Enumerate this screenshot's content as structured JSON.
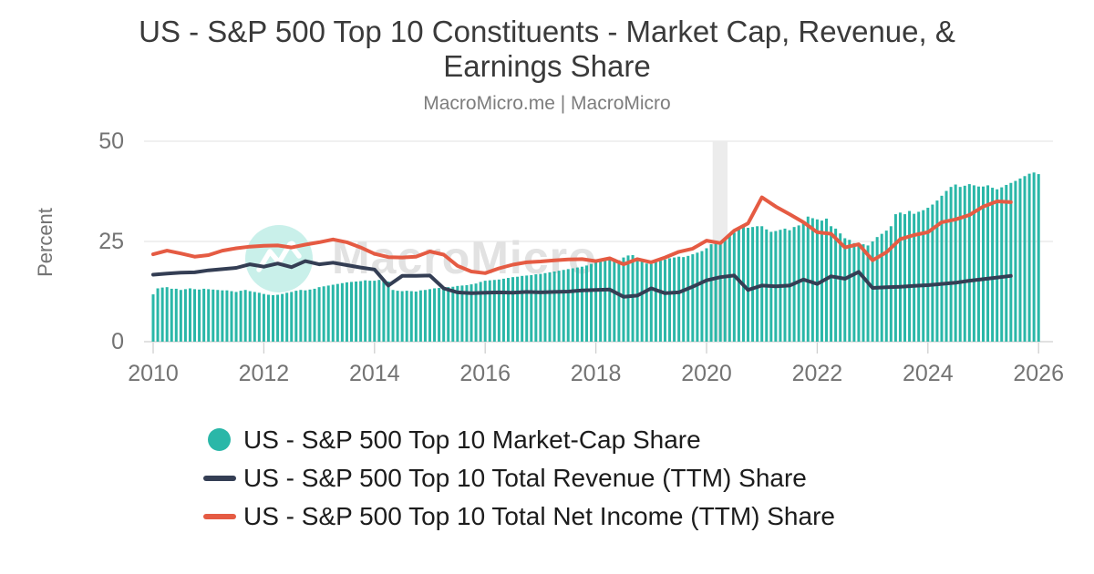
{
  "header": {
    "subtitle": "MacroMicro.me | MacroMicro"
  },
  "watermark": {
    "text": "MacroMicro"
  },
  "colors": {
    "background": "#ffffff",
    "grid": "#e8e8e8",
    "axis_line": "#cfcfcf",
    "tick_text": "#737373",
    "recession_band": "#ececec",
    "watermark_text": "#e2e2e2",
    "watermark_circle": "#bcece5"
  },
  "chart_data": {
    "type": "bar",
    "title": "US - S&P 500 Top 10 Constituents - Market Cap, Revenue, & Earnings Share",
    "subtitle": "MacroMicro.me | MacroMicro",
    "xlabel": "",
    "ylabel": "Percent",
    "ylim": [
      0,
      50
    ],
    "y_ticks": [
      0,
      25,
      50
    ],
    "x_ticks": [
      2010,
      2012,
      2014,
      2016,
      2018,
      2020,
      2022,
      2024,
      2026
    ],
    "grid": true,
    "legend_position": "bottom",
    "recession_band": {
      "from": 2020.11,
      "to": 2020.38
    },
    "bars": {
      "name": "US - S&P 500 Top 10 Market-Cap Share",
      "color": "#2ab7a8",
      "x_start": 2010.0,
      "x_step_months": 1,
      "values": [
        11.8,
        13.3,
        13.5,
        13.6,
        13.2,
        13.2,
        12.9,
        13.1,
        13.3,
        13.1,
        13.0,
        13.2,
        13.1,
        13.0,
        12.9,
        12.8,
        12.8,
        12.6,
        12.4,
        12.7,
        12.9,
        12.6,
        12.4,
        12.2,
        11.9,
        11.7,
        11.6,
        11.7,
        11.9,
        12.2,
        12.4,
        12.7,
        12.9,
        12.8,
        13.0,
        13.2,
        13.6,
        13.8,
        14.0,
        14.2,
        14.4,
        14.6,
        14.8,
        14.9,
        15.0,
        15.1,
        15.3,
        15.2,
        15.2,
        15.4,
        15.3,
        15.0,
        12.9,
        12.7,
        12.6,
        12.7,
        12.6,
        12.5,
        12.8,
        12.9,
        13.1,
        13.3,
        13.4,
        13.5,
        13.6,
        13.7,
        13.9,
        14.0,
        14.1,
        14.3,
        14.5,
        14.9,
        15.2,
        15.3,
        15.4,
        15.5,
        15.7,
        15.9,
        16.1,
        16.2,
        16.4,
        16.5,
        16.6,
        16.8,
        16.9,
        17.1,
        17.3,
        17.5,
        17.7,
        17.9,
        18.1,
        18.3,
        18.5,
        18.7,
        19.0,
        19.4,
        19.8,
        20.2,
        20.6,
        21.0,
        20.7,
        20.3,
        21.0,
        21.5,
        21.6,
        20.6,
        19.9,
        19.5,
        19.4,
        19.8,
        20.2,
        20.5,
        20.8,
        21.0,
        21.2,
        21.1,
        21.4,
        21.8,
        22.2,
        22.6,
        23.3,
        24.3,
        24.6,
        25.0,
        25.8,
        26.4,
        27.2,
        28.2,
        28.6,
        28.4,
        28.6,
        28.8,
        28.8,
        28.0,
        27.4,
        27.6,
        27.9,
        28.2,
        27.8,
        28.6,
        29.0,
        29.5,
        31.2,
        30.8,
        30.5,
        30.2,
        30.7,
        28.8,
        28.2,
        27.0,
        25.8,
        25.4,
        24.6,
        23.9,
        24.3,
        24.0,
        25.0,
        26.1,
        26.9,
        27.7,
        28.8,
        31.8,
        32.2,
        31.8,
        32.6,
        31.9,
        32.4,
        32.8,
        33.4,
        34.2,
        35.2,
        36.4,
        37.6,
        38.6,
        39.2,
        38.6,
        38.9,
        39.3,
        39.0,
        38.7,
        38.7,
        39.0,
        38.4,
        38.0,
        38.5,
        39.1,
        39.6,
        40.1,
        40.7,
        41.3,
        41.9,
        42.2,
        41.8
      ]
    },
    "series": [
      {
        "name": "US - S&P 500 Top 10 Total Revenue (TTM) Share",
        "color": "#343e54",
        "x_start": 2010.0,
        "x_step": 0.25,
        "values": [
          16.7,
          17.0,
          17.2,
          17.3,
          17.8,
          18.1,
          18.4,
          19.3,
          18.7,
          19.5,
          18.6,
          20.1,
          19.3,
          19.7,
          19.1,
          18.5,
          18.0,
          14.0,
          16.4,
          16.4,
          16.5,
          13.3,
          12.3,
          12.1,
          12.2,
          12.3,
          12.2,
          12.4,
          12.3,
          12.4,
          12.5,
          12.8,
          12.9,
          13.0,
          11.2,
          11.5,
          13.3,
          12.1,
          12.3,
          13.7,
          15.3,
          16.1,
          16.5,
          12.9,
          14.0,
          13.8,
          14.0,
          15.5,
          14.4,
          16.3,
          15.7,
          17.4,
          13.4,
          13.6,
          13.7,
          13.9,
          14.1,
          14.4,
          14.7,
          15.2,
          15.6,
          16.0,
          16.4
        ]
      },
      {
        "name": "US - S&P 500 Top 10 Total Net Income (TTM) Share",
        "color": "#e55b43",
        "x_start": 2010.0,
        "x_step": 0.25,
        "values": [
          21.8,
          22.7,
          22.0,
          21.2,
          21.6,
          22.7,
          23.3,
          23.7,
          23.9,
          24.0,
          23.5,
          24.2,
          24.8,
          25.5,
          24.8,
          23.5,
          21.9,
          21.1,
          21.0,
          21.2,
          22.5,
          21.7,
          18.9,
          17.5,
          17.1,
          18.3,
          19.2,
          19.8,
          20.0,
          20.3,
          20.5,
          20.6,
          20.1,
          20.8,
          19.3,
          20.6,
          19.8,
          21.0,
          22.4,
          23.2,
          25.2,
          24.6,
          27.7,
          29.5,
          36.0,
          33.7,
          31.8,
          29.8,
          27.3,
          26.9,
          23.5,
          24.3,
          20.3,
          22.3,
          25.6,
          26.6,
          27.3,
          29.8,
          30.5,
          31.6,
          33.7,
          35.0,
          34.8
        ]
      }
    ]
  }
}
